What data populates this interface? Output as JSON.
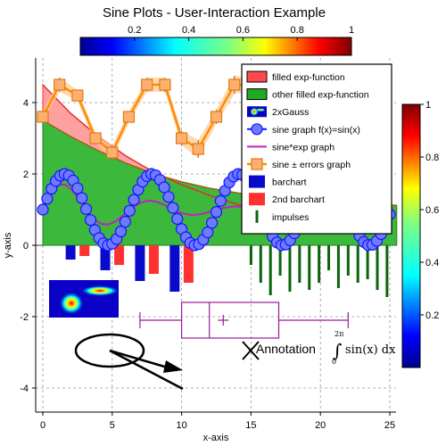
{
  "chart_data": {
    "type": "mixed",
    "title": "Sine Plots - User-Interaction Example",
    "xlabel": "x-axis",
    "ylabel": "y-axis",
    "xlim": [
      -0.5,
      25.5
    ],
    "ylim": [
      -4.6,
      5.2
    ],
    "xticks": [
      0,
      5,
      10,
      15,
      20,
      25
    ],
    "xtick_labels": [
      "0",
      "5",
      "10",
      "15",
      "20",
      "25"
    ],
    "yticks": [
      -4,
      -2,
      0,
      2,
      4
    ],
    "ytick_labels": [
      "-4",
      "-2",
      "0",
      "2",
      "4"
    ],
    "grid": true,
    "legend_position": "top-right",
    "top_colorbar": {
      "palette": "jet",
      "tick_values": [
        0.2,
        0.4,
        0.6,
        0.8,
        1
      ],
      "tick_labels": [
        "0.2",
        "0.4",
        "0.6",
        "0.8",
        "1"
      ]
    },
    "right_colorbar": {
      "palette": "jet",
      "tick_values": [
        0.2,
        0.4,
        0.6,
        0.8,
        1
      ],
      "tick_labels": [
        "0.2",
        "0.4",
        "0.6",
        "0.8",
        "1"
      ]
    },
    "legend": [
      {
        "label": "filled exp-function",
        "kind": "filled",
        "color": "#ff4b4b"
      },
      {
        "label": "other filled exp-function",
        "kind": "filled",
        "color": "#22a822"
      },
      {
        "label": "2xGauss",
        "kind": "image"
      },
      {
        "label": "sine graph f(x)=sin(x)",
        "kind": "line-marker",
        "color": "#1414ff"
      },
      {
        "label": "sine*exp graph",
        "kind": "line",
        "color": "#c020c0"
      },
      {
        "label": "sine ± errors graph",
        "kind": "line-square",
        "color": "#ff8c00"
      },
      {
        "label": "barchart",
        "kind": "bar",
        "color": "#0a0acd"
      },
      {
        "label": "2nd barchart",
        "kind": "bar",
        "color": "#ff3030"
      },
      {
        "label": "impulses",
        "kind": "impulse",
        "color": "#0a640a"
      }
    ],
    "series": [
      {
        "name": "filled exp-function",
        "type": "area",
        "color": "#ff4b4b",
        "x": [
          0,
          2,
          4,
          6,
          8,
          10,
          12,
          14,
          16,
          18
        ],
        "y": [
          4.5,
          3.7,
          3.05,
          2.5,
          2.05,
          1.7,
          1.4,
          1.15,
          0.95,
          0.8
        ]
      },
      {
        "name": "other filled exp-function",
        "type": "area",
        "color": "#22a822",
        "x": [
          0,
          2,
          4,
          6,
          8,
          10,
          12,
          14,
          16,
          18,
          20,
          22,
          24,
          25.5
        ],
        "y": [
          3.5,
          3.05,
          2.65,
          2.3,
          2.0,
          1.78,
          1.6,
          1.47,
          1.36,
          1.28,
          1.22,
          1.17,
          1.14,
          1.12
        ]
      },
      {
        "name": "sine graph f(x)=sin(x)",
        "type": "line",
        "color": "#1414ff",
        "formula": "1 + sin(x)",
        "x_range": [
          0,
          25
        ],
        "n_points": 80
      },
      {
        "name": "sine*exp graph",
        "type": "line",
        "color": "#c020c0",
        "formula": "1 + 0.9*sin(x)*exp(-x/6)",
        "x_range": [
          0,
          25
        ],
        "n_points": 200
      },
      {
        "name": "sine ± errors graph",
        "type": "errorline",
        "color": "#ff8c00",
        "x": [
          0,
          1.2,
          2.5,
          3.8,
          5,
          6.2,
          7.5,
          8.8,
          10,
          11.2,
          12.5,
          13.8,
          15
        ],
        "y": [
          3.6,
          4.5,
          4.2,
          3.0,
          2.6,
          3.6,
          4.5,
          4.5,
          3.0,
          2.7,
          3.6,
          4.5,
          4.5
        ],
        "err": [
          0.15,
          0.2,
          0.15,
          0.15,
          0.2,
          0.15,
          0.2,
          0.2,
          0.2,
          0.25,
          0.2,
          0.25,
          0.2
        ]
      },
      {
        "name": "barchart",
        "type": "bar",
        "color": "#0a0acd",
        "x": [
          2,
          4.5,
          7,
          9.5
        ],
        "y": [
          -0.4,
          -0.7,
          -1.0,
          -1.3
        ]
      },
      {
        "name": "2nd barchart",
        "type": "bar",
        "color": "#ff3030",
        "x": [
          3,
          5.5,
          8,
          10.5
        ],
        "y": [
          -0.3,
          -0.55,
          -0.8,
          -1.05
        ]
      },
      {
        "name": "impulses",
        "type": "impulse",
        "color": "#0a640a",
        "x": [
          15,
          15.7,
          16.4,
          17.1,
          17.8,
          18.5,
          19.2,
          19.9,
          20.6,
          21.3,
          22.0,
          22.7,
          23.4,
          24.1,
          24.8
        ],
        "y": [
          -0.55,
          -1.05,
          -1.4,
          -0.85,
          -1.3,
          -1.05,
          -1.25,
          -1.05,
          -0.7,
          -1.2,
          -0.85,
          -1.05,
          -0.95,
          -1.25,
          -1.45
        ]
      },
      {
        "name": "boxplot",
        "type": "boxplot",
        "color": "#9a1a9a",
        "min": 7,
        "q1": 10,
        "median": 12,
        "mean": 13,
        "q3": 17,
        "max": 22,
        "y": -2.1
      }
    ],
    "annotations": {
      "text": "Annotation",
      "integral_upper": "2π",
      "integral_lower": "0",
      "integral_body": "sin(x) dx",
      "cross_at": [
        15,
        -3.05
      ]
    }
  }
}
